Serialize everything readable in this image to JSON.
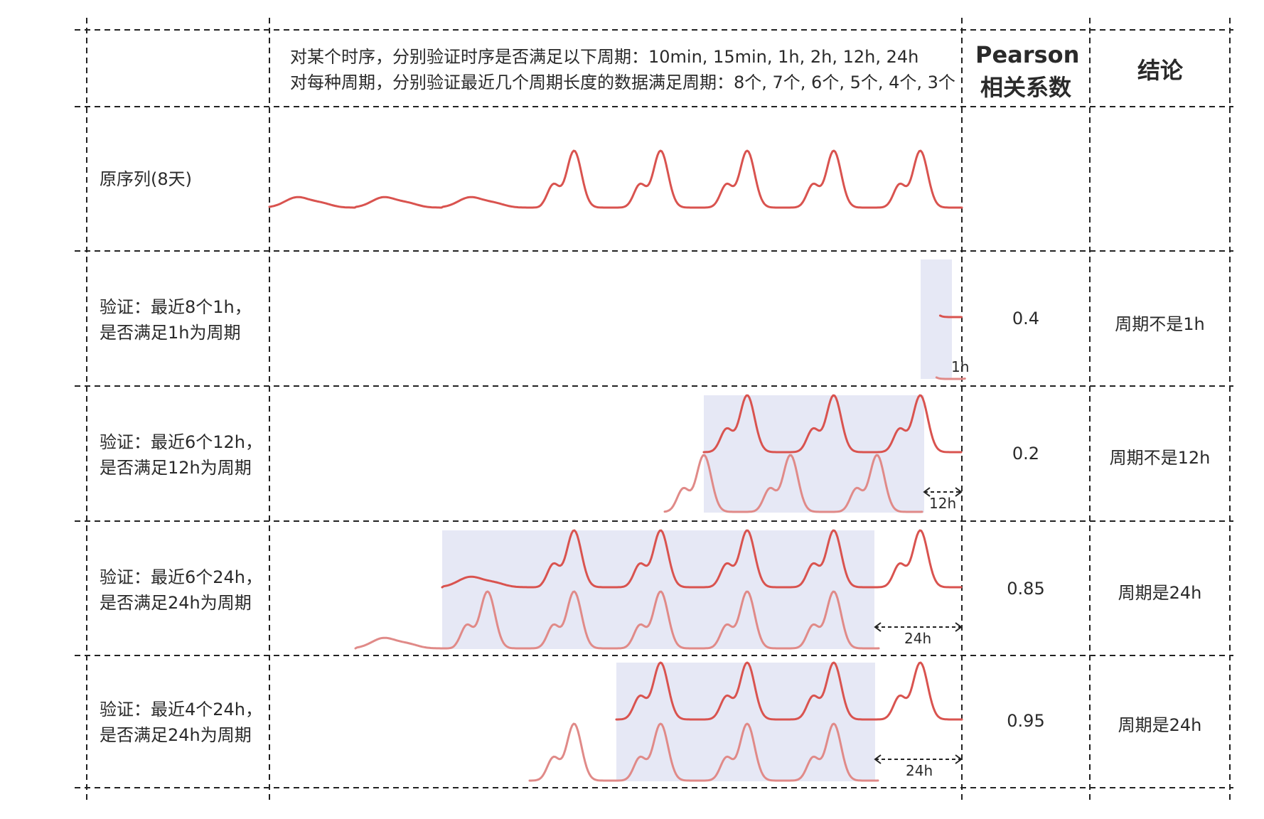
{
  "header": {
    "description_line1": "对某个时序，分别验证时序是否满足以下周期：10min, 15min, 1h, 2h, 12h, 24h",
    "description_line2": "对每种周期，分别验证最近几个周期长度的数据满足周期：8个, 7个, 6个, 5个, 4个, 3个",
    "pearson_line1": "Pearson",
    "pearson_line2": "相关系数",
    "conclusion": "结论"
  },
  "rows": [
    {
      "label_line1": "原序列(8天)",
      "label_line2": "",
      "pearson": "",
      "conclusion": ""
    },
    {
      "label_line1": "验证：最近8个1h，",
      "label_line2": "是否满足1h为周期",
      "pearson": "0.4",
      "conclusion": "周期不是1h",
      "lag_label": "1h"
    },
    {
      "label_line1": "验证：最近6个12h，",
      "label_line2": "是否满足12h为周期",
      "pearson": "0.2",
      "conclusion": "周期不是12h",
      "lag_label": "12h"
    },
    {
      "label_line1": "验证：最近6个24h，",
      "label_line2": "是否满足24h为周期",
      "pearson": "0.85",
      "conclusion": "周期是24h",
      "lag_label": "24h"
    },
    {
      "label_line1": "验证：最近4个24h，",
      "label_line2": "是否满足24h为周期",
      "pearson": "0.95",
      "conclusion": "周期是24h",
      "lag_label": "24h"
    }
  ],
  "colors": {
    "series": "#d9534f",
    "series_shifted": "#e08a88",
    "highlight": "#e6e8f5",
    "grid": "#222222"
  }
}
